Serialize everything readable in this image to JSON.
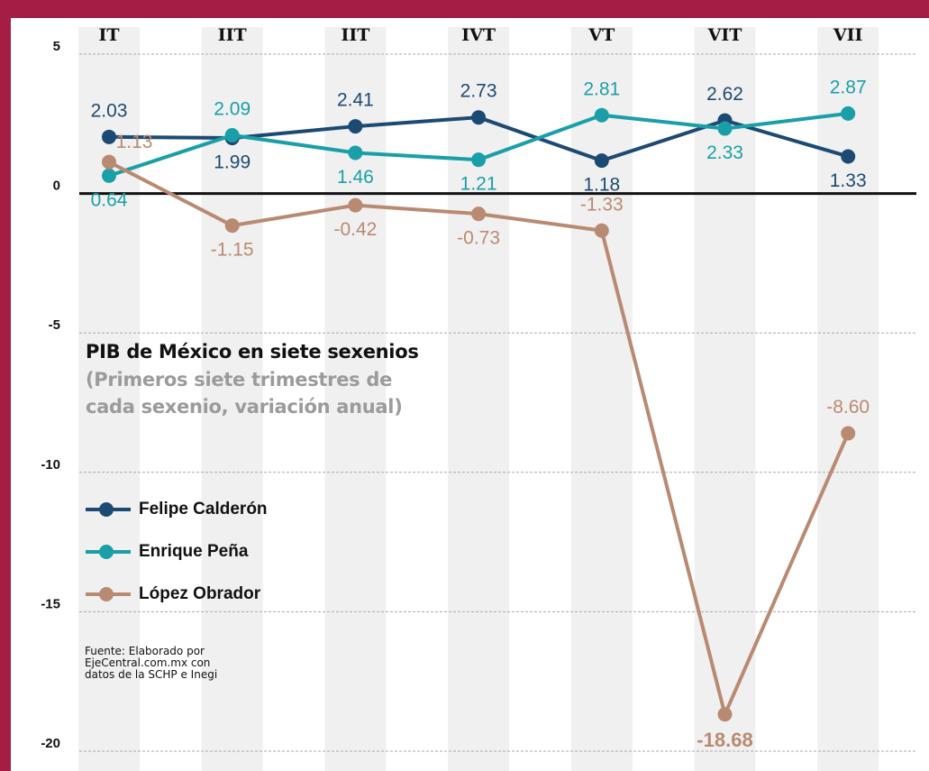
{
  "chart_data": {
    "type": "line",
    "title": "PIB de México en siete sexenios",
    "subtitle": "(Primeros siete trimestres de cada sexenio, variación  anual)",
    "source": "Fuente: Elaborado por EjeCentral.com.mx con datos de la SCHP e Inegi",
    "categories": [
      "IT",
      "IIT",
      "IIT",
      "IVT",
      "VT",
      "VIT",
      "VII"
    ],
    "series": [
      {
        "name": "Felipe Calderón",
        "color": "#1d4a72",
        "values": [
          2.03,
          1.99,
          2.41,
          2.73,
          1.18,
          2.62,
          1.33
        ]
      },
      {
        "name": "Enrique Peña",
        "color": "#1a9fa8",
        "values": [
          0.64,
          2.09,
          1.46,
          1.21,
          2.81,
          2.33,
          2.87
        ]
      },
      {
        "name": "López Obrador",
        "color": "#b98a72",
        "values": [
          1.13,
          -1.15,
          -0.42,
          -0.73,
          -1.33,
          -18.68,
          -8.6
        ],
        "value_labels": [
          "1.13",
          "-1.15",
          "-0.42",
          "-0.73",
          "-1.33",
          "-18.68",
          "-8.60"
        ]
      }
    ],
    "ylim": [
      -20,
      5
    ],
    "yticks": [
      5,
      0,
      -5,
      -10,
      -15,
      -20
    ],
    "grid": true
  }
}
